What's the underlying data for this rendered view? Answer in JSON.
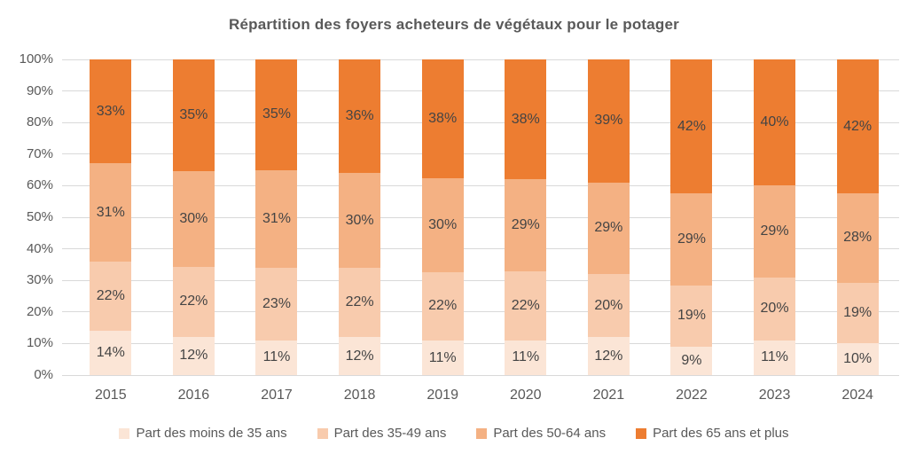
{
  "chart_data": {
    "type": "bar",
    "variant": "stacked-100-percent",
    "title": "Répartition des foyers acheteurs de végétaux pour le potager",
    "categories": [
      "2015",
      "2016",
      "2017",
      "2018",
      "2019",
      "2020",
      "2021",
      "2022",
      "2023",
      "2024"
    ],
    "series": [
      {
        "name": "Part des moins de 35 ans",
        "color": "#FBE5D6",
        "values": [
          14,
          12,
          11,
          12,
          11,
          11,
          12,
          9,
          11,
          10
        ]
      },
      {
        "name": "Part des 35-49 ans",
        "color": "#F8CBAD",
        "values": [
          22,
          22,
          23,
          22,
          22,
          22,
          20,
          19,
          20,
          19
        ]
      },
      {
        "name": "Part des 50-64 ans",
        "color": "#F4B183",
        "values": [
          31,
          30,
          31,
          30,
          30,
          29,
          29,
          29,
          29,
          28
        ]
      },
      {
        "name": "Part des 65 ans et plus",
        "color": "#ED7D31",
        "values": [
          33,
          35,
          35,
          36,
          38,
          38,
          39,
          42,
          40,
          42
        ]
      }
    ],
    "value_label_suffix": "%",
    "xlabel": "",
    "ylabel": "",
    "ylim": [
      0,
      100
    ],
    "y_ticks": [
      "100%",
      "90%",
      "80%",
      "70%",
      "60%",
      "50%",
      "40%",
      "30%",
      "20%",
      "10%",
      "0%"
    ],
    "grid": true,
    "gridline_color": "#d9d9d9",
    "legend_position": "bottom",
    "title_color": "#595959",
    "axis_text_color": "#595959",
    "value_label_color": "#444444"
  }
}
